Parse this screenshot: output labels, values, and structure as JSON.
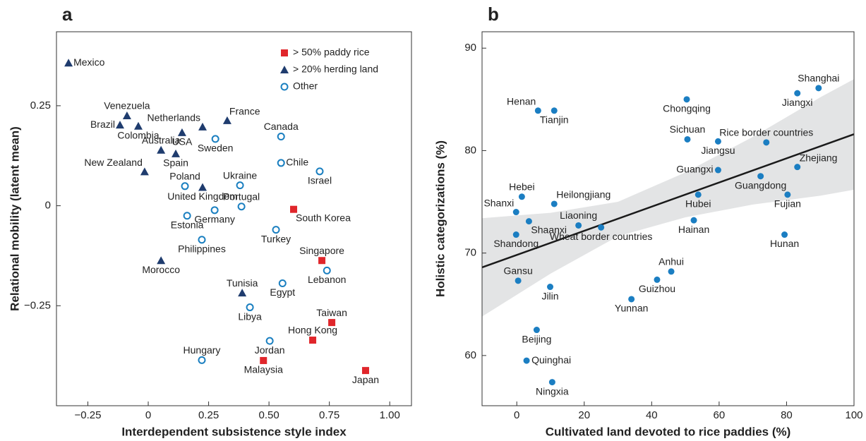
{
  "chart_data": [
    {
      "type": "scatter",
      "title": "a",
      "x_label": "Interdependent subsistence style index",
      "y_label": "Relational mobility (latent mean)",
      "xlim": [
        -0.38,
        1.09
      ],
      "ylim": [
        -0.5,
        0.435
      ],
      "xticks": [
        {
          "value": -0.25,
          "label": "−0.25"
        },
        0,
        0.25,
        {
          "value": 0.5,
          "label": "0.50"
        },
        0.75,
        {
          "value": 1,
          "label": "1.00"
        }
      ],
      "yticks": [
        {
          "value": -0.25,
          "label": "−0.25"
        },
        0,
        0.25
      ],
      "legend": "upper right",
      "series": [
        {
          "name": "> 50% paddy rice",
          "color": "#e0262b",
          "marker": "square",
          "labels": [
            "South Korea",
            "Singapore",
            "Taiwan",
            "Hong Kong",
            "Malaysia",
            "Japan"
          ],
          "x": [
            0.602,
            0.719,
            0.76,
            0.681,
            0.477,
            0.9
          ],
          "y": [
            -0.009,
            -0.137,
            -0.292,
            -0.336,
            -0.387,
            -0.412
          ]
        },
        {
          "name": "> 20% herding land",
          "color": "#1f3c6e",
          "marker": "triangle",
          "labels": [
            "Mexico",
            "Venezuela",
            "Brazil",
            "Colombia",
            "Netherlands",
            "France",
            "USA",
            "Australia",
            "Spain",
            "New Zealand",
            "United Kingdom",
            "Morocco",
            "Tunisia"
          ],
          "x": [
            -0.33,
            -0.088,
            -0.117,
            -0.041,
            0.225,
            0.327,
            0.14,
            0.053,
            0.114,
            -0.015,
            0.225,
            0.053,
            0.389
          ],
          "y": [
            0.357,
            0.225,
            0.202,
            0.199,
            0.197,
            0.213,
            0.183,
            0.139,
            0.13,
            0.085,
            0.046,
            -0.137,
            -0.218
          ]
        },
        {
          "name": "Other",
          "color": "#1a7fc0",
          "marker": "circle",
          "labels": [
            "Sweden",
            "Canada",
            "Chile",
            "Israel",
            "Poland",
            "Ukraine",
            "Portugal",
            "Germany",
            "Estonia",
            "Turkey",
            "Philippines",
            "Lebanon",
            "Egypt",
            "Libya",
            "Jordan",
            "Hungary"
          ],
          "x": [
            0.278,
            0.55,
            0.55,
            0.71,
            0.152,
            0.38,
            0.386,
            0.275,
            0.161,
            0.529,
            0.222,
            0.74,
            0.556,
            0.421,
            0.503,
            0.222
          ],
          "y": [
            0.167,
            0.173,
            0.107,
            0.086,
            0.049,
            0.051,
            -0.002,
            -0.011,
            -0.025,
            -0.06,
            -0.085,
            -0.162,
            -0.194,
            -0.254,
            -0.338,
            -0.386
          ]
        }
      ]
    },
    {
      "type": "scatter",
      "title": "b",
      "x_label": "Cultivated land devoted to rice paddies (%)",
      "y_label": "Holistic categorizations (%)",
      "xlim": [
        -10.3,
        100
      ],
      "ylim": [
        55.1,
        91.6
      ],
      "xticks": [
        0,
        20,
        40,
        60,
        80,
        100
      ],
      "yticks": [
        60,
        70,
        80,
        90
      ],
      "series": [
        {
          "color": "#1b7ec2",
          "marker": "dot",
          "labels": [
            "Shanghai",
            "Jiangxi",
            "Henan",
            "Tianjin",
            "Chongqing",
            "Sichuan",
            "Jiangsu",
            "Rice border countries",
            "Zhejiang",
            "Guangxi",
            "Guangdong",
            "Hubei",
            "Fujian",
            "Hebei",
            "Heilongjiang",
            "Shanxi",
            "Shaanxi",
            "Liaoning",
            "Wheat border countries",
            "Hainan",
            "Shandong",
            "Hunan",
            "Anhui",
            "Guizhou",
            "Gansu",
            "Jilin",
            "Yunnan",
            "Beijing",
            "Quinghai",
            "Ningxia"
          ],
          "x": [
            89.5,
            83.2,
            6.3,
            11.1,
            50.4,
            50.6,
            59.7,
            74.0,
            83.2,
            59.7,
            72.3,
            53.8,
            80.3,
            1.5,
            11.1,
            -0.2,
            3.6,
            18.3,
            25.0,
            52.5,
            -0.2,
            79.4,
            45.8,
            41.6,
            0.4,
            9.9,
            34.0,
            5.9,
            2.9,
            10.5
          ],
          "y": [
            86.1,
            85.6,
            83.9,
            83.9,
            85.0,
            81.1,
            80.9,
            80.8,
            78.4,
            78.1,
            77.5,
            75.7,
            75.7,
            75.5,
            74.8,
            74.0,
            73.1,
            72.7,
            72.5,
            73.2,
            71.8,
            71.8,
            68.2,
            67.4,
            67.3,
            66.7,
            65.5,
            62.5,
            59.5,
            57.4
          ]
        }
      ],
      "fit": {
        "color": "#1a1a1a",
        "x": [
          -10.3,
          100
        ],
        "y": [
          68.6,
          81.6
        ]
      },
      "band": {
        "color": "#e3e4e5",
        "x": [
          -10.3,
          10,
          30,
          50,
          70,
          90,
          100
        ],
        "upper": [
          73.4,
          73.93,
          75.0,
          77.87,
          81.34,
          85.2,
          86.98
        ],
        "lower": [
          63.8,
          67.99,
          71.64,
          73.49,
          74.74,
          75.6,
          76.18
        ]
      }
    }
  ]
}
